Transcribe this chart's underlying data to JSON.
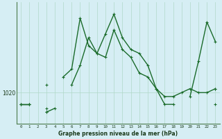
{
  "title": "Graphe pression niveau de la mer (hPa)",
  "bg_color": "#d6eef4",
  "grid_color": "#b0d8c8",
  "line_color": "#1a6b2a",
  "x_ticks": [
    0,
    1,
    2,
    3,
    4,
    5,
    6,
    7,
    8,
    9,
    10,
    11,
    12,
    13,
    14,
    15,
    16,
    17,
    18,
    19,
    20,
    21,
    22,
    23
  ],
  "ylim": [
    1012,
    1043
  ],
  "ytick_val": 1020,
  "series_main": [
    1017,
    1017,
    null,
    1022,
    null,
    1024,
    1026,
    1039,
    1032,
    1030,
    1035,
    1040,
    1034,
    1031,
    1030,
    1027,
    1021,
    1017,
    1017,
    null,
    1019,
    1028,
    1038,
    1033
  ],
  "series_mid": [
    1017,
    1017,
    null,
    1015,
    1016,
    null,
    1022,
    1027,
    1034,
    1030,
    1029,
    1036,
    1031,
    1029,
    1025,
    1024,
    1021,
    1019,
    1019,
    1020,
    1021,
    1020,
    1020,
    1021
  ],
  "series_flat1": [
    1017,
    1017,
    null,
    1015,
    null,
    null,
    null,
    null,
    null,
    null,
    null,
    null,
    null,
    null,
    null,
    null,
    null,
    null,
    null,
    null,
    null,
    null,
    null,
    1021
  ],
  "series_flat2": [
    null,
    null,
    null,
    1016,
    null,
    null,
    null,
    null,
    null,
    null,
    null,
    null,
    null,
    null,
    null,
    null,
    null,
    null,
    null,
    null,
    null,
    null,
    null,
    1017
  ]
}
